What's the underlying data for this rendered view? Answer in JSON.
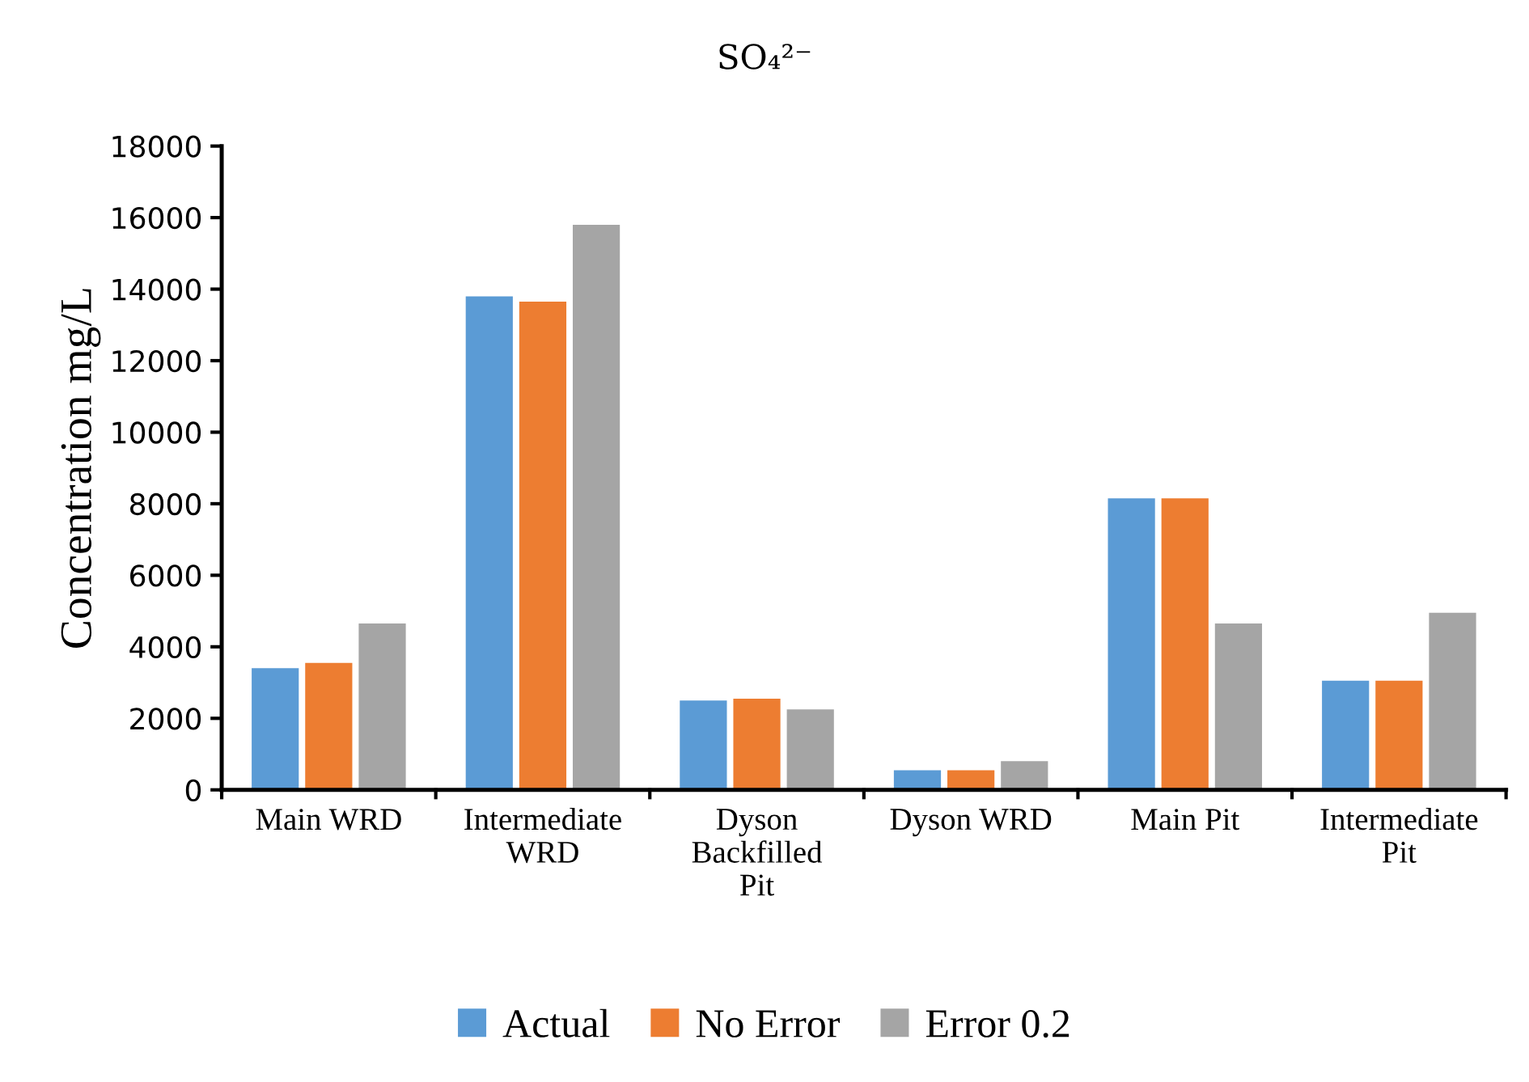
{
  "chart_data": {
    "type": "bar",
    "title": "SO₄²⁻",
    "ylabel": "Concentration mg/L",
    "categories": [
      "Main WRD",
      "Intermediate\nWRD",
      "Dyson\nBackfilled\nPit",
      "Dyson WRD",
      "Main Pit",
      "Intermediate\nPit"
    ],
    "series": [
      {
        "name": "Actual",
        "color": "#5b9bd5",
        "values": [
          3400,
          13800,
          2500,
          550,
          8150,
          3050
        ]
      },
      {
        "name": "No Error",
        "color": "#ed7d31",
        "values": [
          3550,
          13650,
          2550,
          550,
          8150,
          3050
        ]
      },
      {
        "name": "Error 0.2",
        "color": "#a5a5a5",
        "values": [
          4650,
          15800,
          2250,
          800,
          4650,
          4950
        ]
      }
    ],
    "ylim": [
      0,
      18000
    ],
    "yticks": [
      0,
      2000,
      4000,
      6000,
      8000,
      10000,
      12000,
      14000,
      16000,
      18000
    ],
    "grid": false,
    "legend": "bottom"
  }
}
